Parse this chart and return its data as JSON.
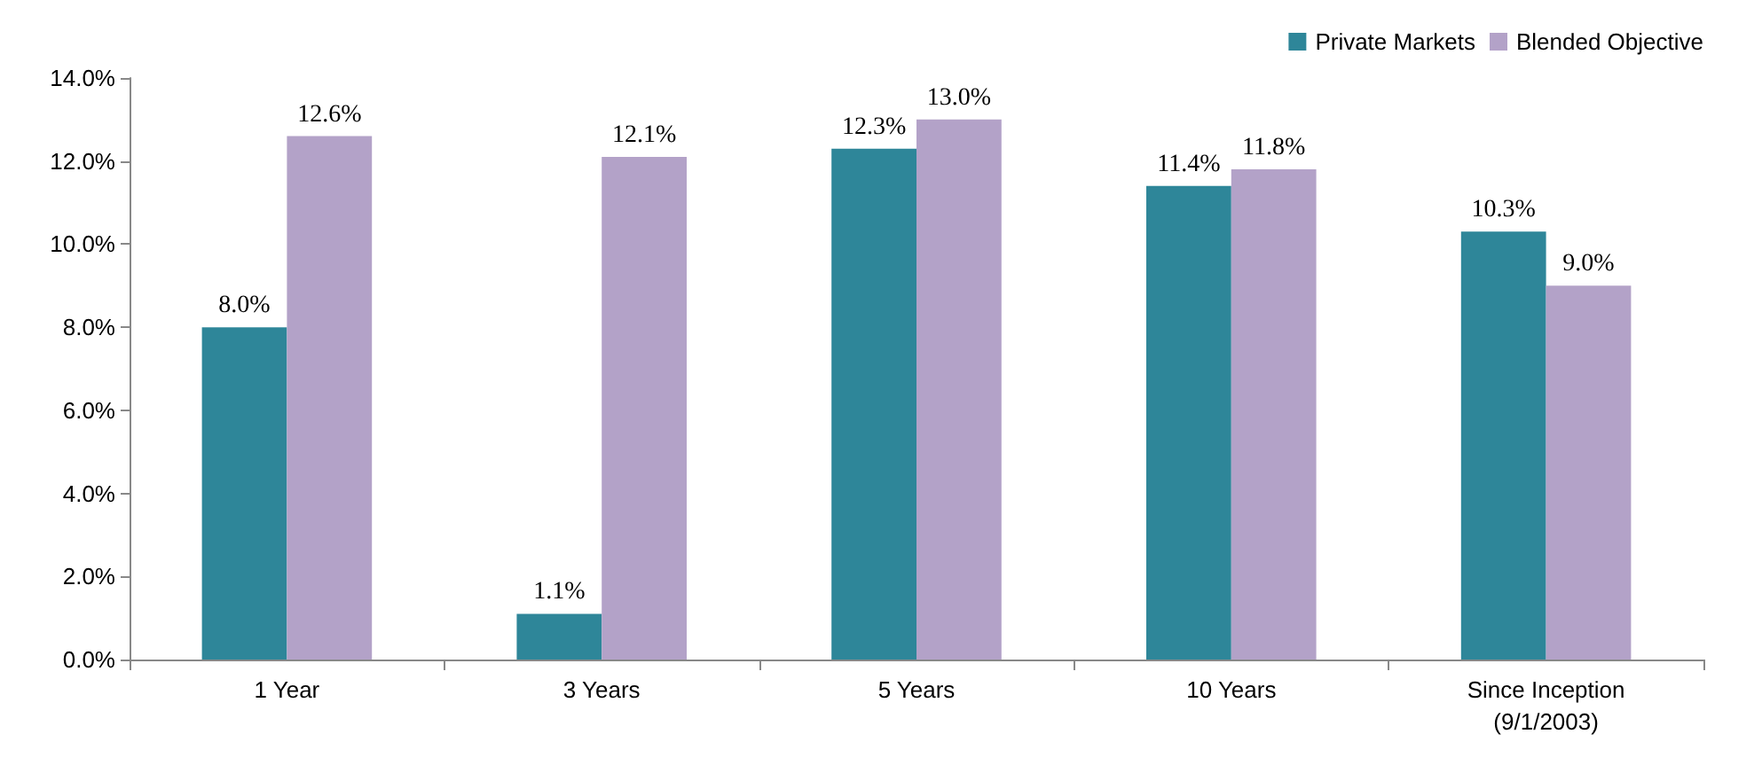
{
  "chart_data": {
    "type": "bar",
    "categories": [
      "1 Year",
      "3 Years",
      "5 Years",
      "10 Years",
      "Since Inception\n(9/1/2003)"
    ],
    "series": [
      {
        "name": "Private Markets",
        "color": "#2e8699",
        "values": [
          8.0,
          1.1,
          12.3,
          11.4,
          10.3
        ],
        "value_labels": [
          "8.0%",
          "1.1%",
          "12.3%",
          "11.4%",
          "10.3%"
        ]
      },
      {
        "name": "Blended Objective",
        "color": "#b3a2c8",
        "values": [
          12.6,
          12.1,
          13.0,
          11.8,
          9.0
        ],
        "value_labels": [
          "12.6%",
          "12.1%",
          "13.0%",
          "11.8%",
          "9.0%"
        ]
      }
    ],
    "ylim": [
      0,
      14
    ],
    "yticks": [
      {
        "value": 0,
        "label": "0.0%"
      },
      {
        "value": 2,
        "label": "2.0%"
      },
      {
        "value": 4,
        "label": "4.0%"
      },
      {
        "value": 6,
        "label": "6.0%"
      },
      {
        "value": 8,
        "label": "8.0%"
      },
      {
        "value": 10,
        "label": "10.0%"
      },
      {
        "value": 12,
        "label": "12.0%"
      },
      {
        "value": 14,
        "label": "14.0%"
      }
    ],
    "grid": false,
    "legend": "top right"
  }
}
